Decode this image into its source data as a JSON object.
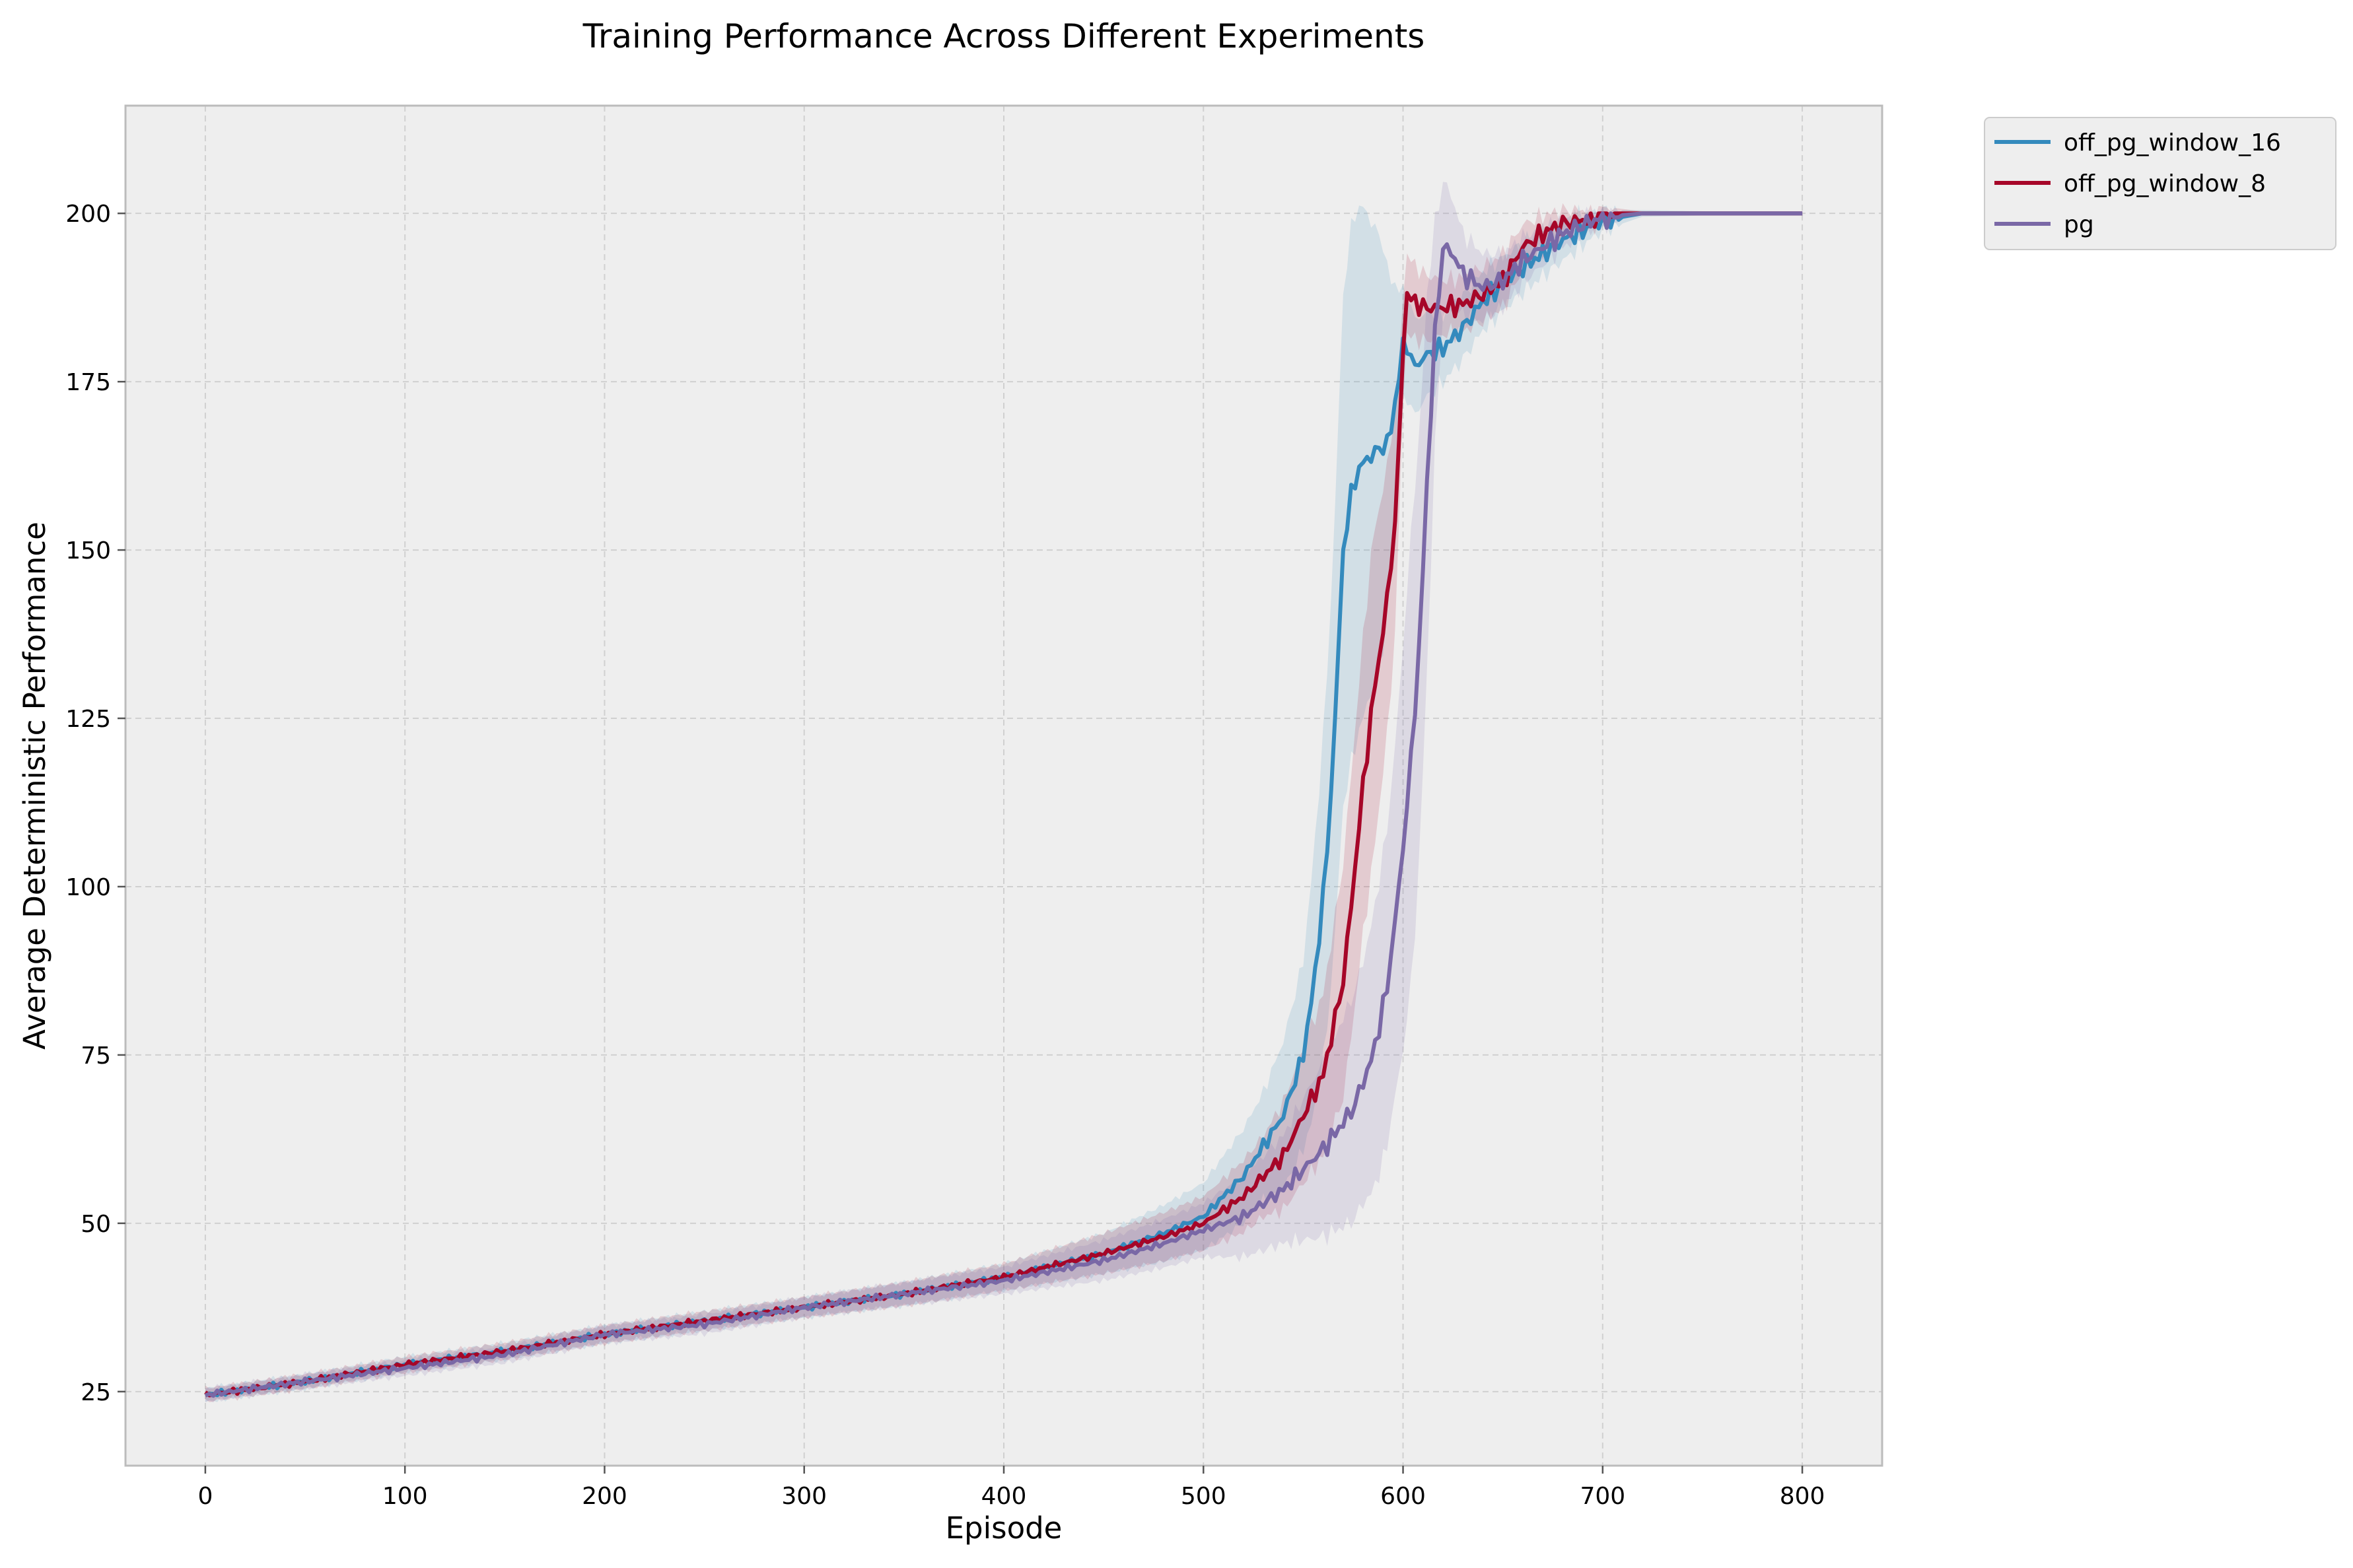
{
  "chart_data": {
    "type": "line",
    "title": "Training Performance Across Different Experiments",
    "xlabel": "Episode",
    "ylabel": "Average Deterministic Performance",
    "xlim": [
      -40,
      840
    ],
    "ylim": [
      14,
      216
    ],
    "xticks": [
      0,
      100,
      200,
      300,
      400,
      500,
      600,
      700,
      800
    ],
    "yticks": [
      25,
      50,
      75,
      100,
      125,
      150,
      175,
      200
    ],
    "grid": true,
    "legend_position": "outside-top-right",
    "colors": {
      "off_pg_window_16": "#348abd",
      "off_pg_window_8": "#a60628",
      "pg": "#7a68a6",
      "plot_background": "#eeeeee",
      "frame": "#bcbcbc"
    },
    "series": [
      {
        "name": "off_pg_window_16",
        "color": "#348abd",
        "points": [
          [
            0,
            24.5
          ],
          [
            50,
            26.5
          ],
          [
            100,
            29
          ],
          [
            150,
            31
          ],
          [
            200,
            33.5
          ],
          [
            250,
            35.5
          ],
          [
            300,
            37.5
          ],
          [
            350,
            39.5
          ],
          [
            400,
            42
          ],
          [
            450,
            45.5
          ],
          [
            480,
            48.5
          ],
          [
            500,
            51
          ],
          [
            520,
            57
          ],
          [
            540,
            66
          ],
          [
            550,
            75
          ],
          [
            556,
            87
          ],
          [
            562,
            105
          ],
          [
            566,
            125
          ],
          [
            570,
            150
          ],
          [
            575,
            160
          ],
          [
            580,
            163
          ],
          [
            588,
            165
          ],
          [
            593,
            166
          ],
          [
            598,
            176
          ],
          [
            601,
            182
          ],
          [
            605,
            177
          ],
          [
            612,
            179
          ],
          [
            620,
            180
          ],
          [
            630,
            183
          ],
          [
            640,
            187
          ],
          [
            660,
            192
          ],
          [
            680,
            196
          ],
          [
            700,
            199
          ],
          [
            720,
            200
          ],
          [
            760,
            200
          ],
          [
            800,
            200
          ]
        ],
        "band": [
          [
            0,
            1
          ],
          [
            300,
            1.5
          ],
          [
            400,
            2
          ],
          [
            450,
            3
          ],
          [
            500,
            5
          ],
          [
            530,
            8
          ],
          [
            550,
            14
          ],
          [
            560,
            24
          ],
          [
            565,
            30
          ],
          [
            570,
            38
          ],
          [
            575,
            40
          ],
          [
            580,
            38
          ],
          [
            590,
            30
          ],
          [
            595,
            20
          ],
          [
            600,
            8
          ],
          [
            620,
            5
          ],
          [
            650,
            4
          ],
          [
            680,
            3
          ],
          [
            700,
            1.5
          ],
          [
            720,
            0.5
          ],
          [
            800,
            0
          ]
        ]
      },
      {
        "name": "off_pg_window_8",
        "color": "#a60628",
        "points": [
          [
            0,
            24.5
          ],
          [
            50,
            26.5
          ],
          [
            100,
            29
          ],
          [
            150,
            31
          ],
          [
            200,
            33.5
          ],
          [
            250,
            35.5
          ],
          [
            300,
            37.5
          ],
          [
            350,
            39.5
          ],
          [
            400,
            42
          ],
          [
            450,
            45.5
          ],
          [
            480,
            48
          ],
          [
            500,
            50
          ],
          [
            520,
            54
          ],
          [
            540,
            60
          ],
          [
            560,
            72
          ],
          [
            570,
            86
          ],
          [
            575,
            100
          ],
          [
            580,
            115
          ],
          [
            585,
            128
          ],
          [
            590,
            138
          ],
          [
            595,
            150
          ],
          [
            598,
            165
          ],
          [
            601,
            188
          ],
          [
            610,
            186
          ],
          [
            620,
            186
          ],
          [
            630,
            186.5
          ],
          [
            640,
            188
          ],
          [
            650,
            190
          ],
          [
            660,
            195
          ],
          [
            670,
            197
          ],
          [
            680,
            198.5
          ],
          [
            690,
            199
          ],
          [
            700,
            200
          ],
          [
            740,
            200
          ],
          [
            800,
            200
          ]
        ],
        "band": [
          [
            0,
            1
          ],
          [
            300,
            1.5
          ],
          [
            400,
            2
          ],
          [
            450,
            3
          ],
          [
            500,
            4
          ],
          [
            530,
            6
          ],
          [
            560,
            12
          ],
          [
            575,
            20
          ],
          [
            585,
            24
          ],
          [
            595,
            18
          ],
          [
            601,
            6
          ],
          [
            620,
            4
          ],
          [
            650,
            4
          ],
          [
            680,
            2
          ],
          [
            700,
            1
          ],
          [
            720,
            0.3
          ],
          [
            800,
            0
          ]
        ]
      },
      {
        "name": "pg",
        "color": "#7a68a6",
        "points": [
          [
            0,
            24.5
          ],
          [
            50,
            26.5
          ],
          [
            100,
            28.5
          ],
          [
            150,
            30.5
          ],
          [
            200,
            33.5
          ],
          [
            250,
            35
          ],
          [
            300,
            37.5
          ],
          [
            350,
            39.5
          ],
          [
            400,
            41.5
          ],
          [
            450,
            44.5
          ],
          [
            480,
            47
          ],
          [
            500,
            49
          ],
          [
            520,
            51
          ],
          [
            540,
            55
          ],
          [
            560,
            61
          ],
          [
            575,
            67
          ],
          [
            585,
            75
          ],
          [
            592,
            85
          ],
          [
            598,
            100
          ],
          [
            603,
            115
          ],
          [
            608,
            135
          ],
          [
            612,
            160
          ],
          [
            616,
            182
          ],
          [
            620,
            195
          ],
          [
            625,
            194
          ],
          [
            630,
            191
          ],
          [
            640,
            189
          ],
          [
            650,
            190
          ],
          [
            660,
            193
          ],
          [
            670,
            195
          ],
          [
            680,
            197
          ],
          [
            700,
            199.5
          ],
          [
            720,
            200
          ],
          [
            800,
            200
          ]
        ],
        "band": [
          [
            0,
            1
          ],
          [
            300,
            1.5
          ],
          [
            400,
            2
          ],
          [
            450,
            3
          ],
          [
            500,
            4
          ],
          [
            540,
            8
          ],
          [
            580,
            18
          ],
          [
            595,
            25
          ],
          [
            600,
            30
          ],
          [
            605,
            34
          ],
          [
            612,
            28
          ],
          [
            617,
            14
          ],
          [
            620,
            10
          ],
          [
            630,
            6
          ],
          [
            650,
            4
          ],
          [
            680,
            2
          ],
          [
            700,
            1
          ],
          [
            720,
            0.3
          ],
          [
            800,
            0
          ]
        ]
      }
    ]
  }
}
